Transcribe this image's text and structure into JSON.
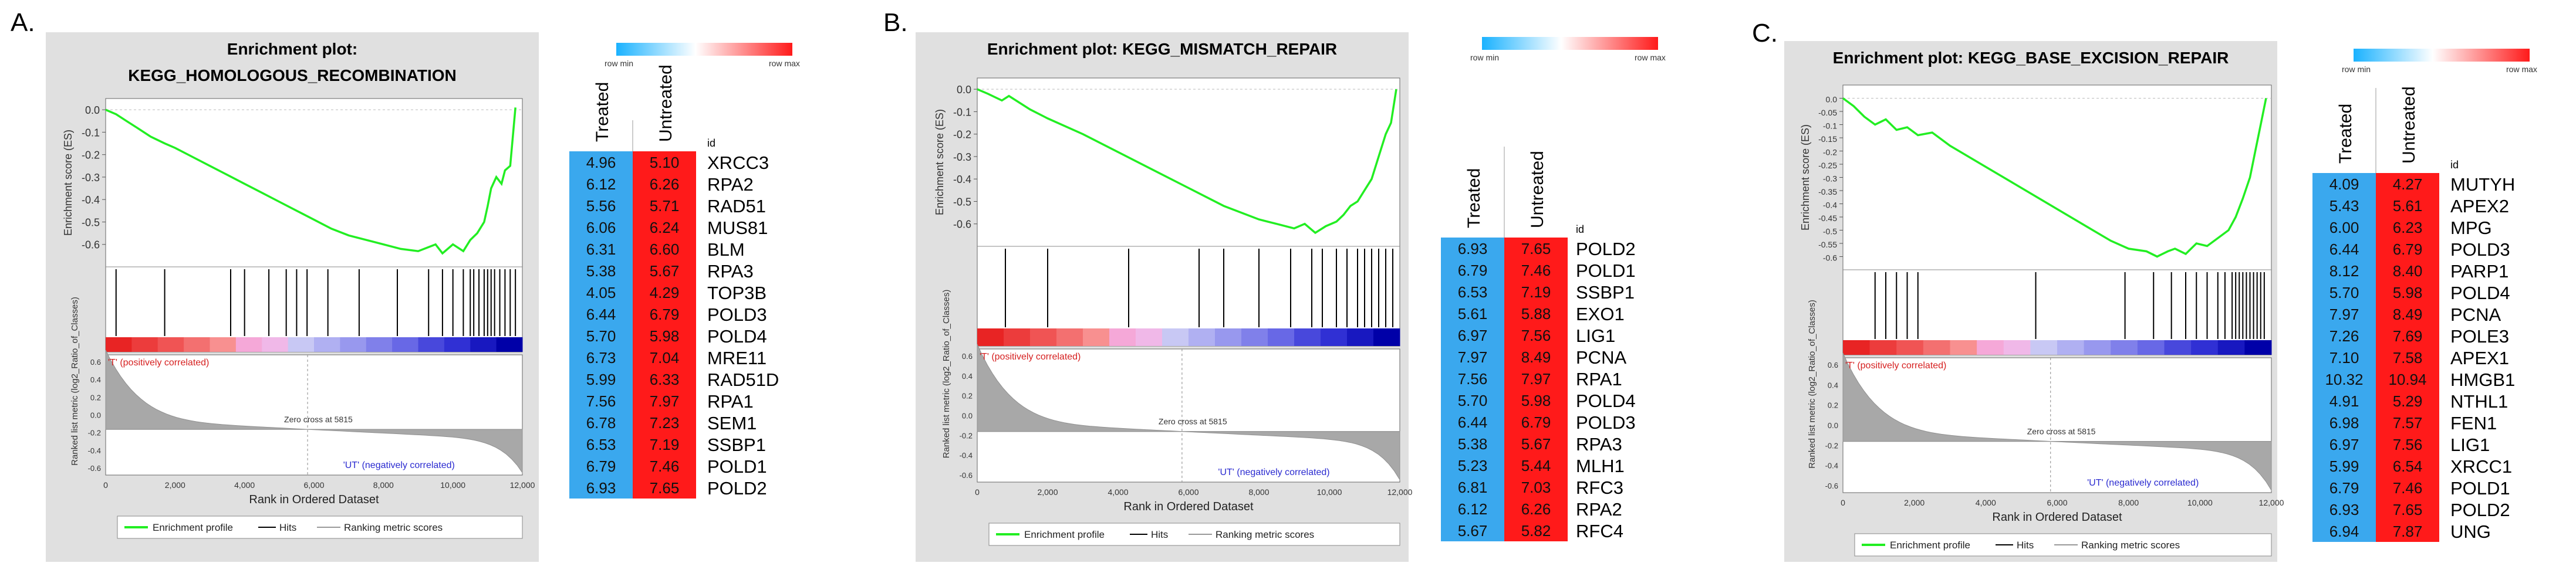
{
  "panels": [
    {
      "letter": "A.",
      "plot": {
        "title_line1": "Enrichment plot:",
        "title_line2": "KEGG_HOMOLOGOUS_RECOMBINATION",
        "es_ylabel": "Enrichment score (ES)",
        "metric_ylabel": "Ranked list metric (log2_Ratio_of_Classes)",
        "xlabel": "Rank in Ordered Dataset",
        "pos_label": "'T' (positively correlated)",
        "neg_label": "'UT' (negatively correlated)",
        "zero_cross_label": "Zero cross at 5815",
        "legend": [
          "Enrichment profile",
          "Hits",
          "Ranking metric scores"
        ]
      },
      "heatmap": {
        "scale_min_label": "row min",
        "scale_max_label": "row max",
        "col_headers": [
          "Treated",
          "Untreated"
        ],
        "id_header": "id",
        "rows": [
          {
            "t": "4.96",
            "u": "5.10",
            "id": "XRCC3"
          },
          {
            "t": "6.12",
            "u": "6.26",
            "id": "RPA2"
          },
          {
            "t": "5.56",
            "u": "5.71",
            "id": "RAD51"
          },
          {
            "t": "6.06",
            "u": "6.24",
            "id": "MUS81"
          },
          {
            "t": "6.31",
            "u": "6.60",
            "id": "BLM"
          },
          {
            "t": "5.38",
            "u": "5.67",
            "id": "RPA3"
          },
          {
            "t": "4.05",
            "u": "4.29",
            "id": "TOP3B"
          },
          {
            "t": "6.44",
            "u": "6.79",
            "id": "POLD3"
          },
          {
            "t": "5.70",
            "u": "5.98",
            "id": "POLD4"
          },
          {
            "t": "6.73",
            "u": "7.04",
            "id": "MRE11"
          },
          {
            "t": "5.99",
            "u": "6.33",
            "id": "RAD51D"
          },
          {
            "t": "7.56",
            "u": "7.97",
            "id": "RPA1"
          },
          {
            "t": "6.78",
            "u": "7.23",
            "id": "SEM1"
          },
          {
            "t": "6.53",
            "u": "7.19",
            "id": "SSBP1"
          },
          {
            "t": "6.79",
            "u": "7.46",
            "id": "POLD1"
          },
          {
            "t": "6.93",
            "u": "7.65",
            "id": "POLD2"
          }
        ]
      }
    },
    {
      "letter": "B.",
      "plot": {
        "title_line1": "Enrichment plot: KEGG_MISMATCH_REPAIR",
        "title_line2": "",
        "es_ylabel": "Enrichment score (ES)",
        "metric_ylabel": "Ranked list metric (log2_Ratio_of_Classes)",
        "xlabel": "Rank in Ordered Dataset",
        "pos_label": "'T' (positively correlated)",
        "neg_label": "'UT' (negatively correlated)",
        "zero_cross_label": "Zero cross at 5815",
        "legend": [
          "Enrichment profile",
          "Hits",
          "Ranking metric scores"
        ]
      },
      "heatmap": {
        "scale_min_label": "row min",
        "scale_max_label": "row max",
        "col_headers": [
          "Treated",
          "Untreated"
        ],
        "id_header": "id",
        "rows": [
          {
            "t": "6.93",
            "u": "7.65",
            "id": "POLD2"
          },
          {
            "t": "6.79",
            "u": "7.46",
            "id": "POLD1"
          },
          {
            "t": "6.53",
            "u": "7.19",
            "id": "SSBP1"
          },
          {
            "t": "5.61",
            "u": "5.88",
            "id": "EXO1"
          },
          {
            "t": "6.97",
            "u": "7.56",
            "id": "LIG1"
          },
          {
            "t": "7.97",
            "u": "8.49",
            "id": "PCNA"
          },
          {
            "t": "7.56",
            "u": "7.97",
            "id": "RPA1"
          },
          {
            "t": "5.70",
            "u": "5.98",
            "id": "POLD4"
          },
          {
            "t": "6.44",
            "u": "6.79",
            "id": "POLD3"
          },
          {
            "t": "5.38",
            "u": "5.67",
            "id": "RPA3"
          },
          {
            "t": "5.23",
            "u": "5.44",
            "id": "MLH1"
          },
          {
            "t": "6.81",
            "u": "7.03",
            "id": "RFC3"
          },
          {
            "t": "6.12",
            "u": "6.26",
            "id": "RPA2"
          },
          {
            "t": "5.67",
            "u": "5.82",
            "id": "RFC4"
          }
        ]
      }
    },
    {
      "letter": "C.",
      "plot": {
        "title_line1": "Enrichment plot: KEGG_BASE_EXCISION_REPAIR",
        "title_line2": "",
        "es_ylabel": "Enrichment score (ES)",
        "metric_ylabel": "Ranked list metric (log2_Ratio_of_Classes)",
        "xlabel": "Rank in Ordered Dataset",
        "pos_label": "'T' (positively correlated)",
        "neg_label": "'UT' (negatively correlated)",
        "zero_cross_label": "Zero cross at 5815",
        "legend": [
          "Enrichment profile",
          "Hits",
          "Ranking metric scores"
        ]
      },
      "heatmap": {
        "scale_min_label": "row min",
        "scale_max_label": "row max",
        "col_headers": [
          "Treated",
          "Untreated"
        ],
        "id_header": "id",
        "rows": [
          {
            "t": "4.09",
            "u": "4.27",
            "id": "MUTYH"
          },
          {
            "t": "5.43",
            "u": "5.61",
            "id": "APEX2"
          },
          {
            "t": "6.00",
            "u": "6.23",
            "id": "MPG"
          },
          {
            "t": "6.44",
            "u": "6.79",
            "id": "POLD3"
          },
          {
            "t": "8.12",
            "u": "8.40",
            "id": "PARP1"
          },
          {
            "t": "5.70",
            "u": "5.98",
            "id": "POLD4"
          },
          {
            "t": "7.97",
            "u": "8.49",
            "id": "PCNA"
          },
          {
            "t": "7.26",
            "u": "7.69",
            "id": "POLE3"
          },
          {
            "t": "7.10",
            "u": "7.58",
            "id": "APEX1"
          },
          {
            "t": "10.32",
            "u": "10.94",
            "id": "HMGB1"
          },
          {
            "t": "4.91",
            "u": "5.29",
            "id": "NTHL1"
          },
          {
            "t": "6.98",
            "u": "7.57",
            "id": "FEN1"
          },
          {
            "t": "6.97",
            "u": "7.56",
            "id": "LIG1"
          },
          {
            "t": "5.99",
            "u": "6.54",
            "id": "XRCC1"
          },
          {
            "t": "6.79",
            "u": "7.46",
            "id": "POLD1"
          },
          {
            "t": "6.93",
            "u": "7.65",
            "id": "POLD2"
          },
          {
            "t": "6.94",
            "u": "7.87",
            "id": "UNG"
          }
        ]
      }
    }
  ],
  "colors": {
    "es_line": "#22ee22",
    "treated_cell": "#3aa8ee",
    "untreated_cell": "#ff1a1a",
    "scale_min": "#1ab2ff",
    "scale_max": "#ff1a1a",
    "plot_bg": "#e0e0e0",
    "pos_text": "#d62020",
    "neg_text": "#2a2ad0"
  },
  "chart_data": [
    {
      "type": "line",
      "panel": "A.",
      "title": "Enrichment plot: KEGG_HOMOLOGOUS_RECOMBINATION",
      "xlabel": "Rank in Ordered Dataset",
      "ylabel": "Enrichment score (ES)",
      "xlim": [
        0,
        12000
      ],
      "ylim": [
        -0.7,
        0.05
      ],
      "x_ticks": [
        "0",
        "2,000",
        "4,000",
        "6,000",
        "8,000",
        "10,000",
        "12,000"
      ],
      "y_ticks": [
        "0.0",
        "-0.1",
        "-0.2",
        "-0.3",
        "-0.4",
        "-0.5",
        "-0.6"
      ],
      "x": [
        0,
        300,
        600,
        900,
        1300,
        1700,
        2000,
        2500,
        3000,
        3500,
        4000,
        4500,
        5000,
        5500,
        6000,
        6500,
        7000,
        7500,
        8000,
        8500,
        9000,
        9500,
        9700,
        10000,
        10300,
        10500,
        10700,
        10900,
        11000,
        11100,
        11250,
        11400,
        11500,
        11650,
        11800
      ],
      "es": [
        0,
        -0.02,
        -0.05,
        -0.08,
        -0.12,
        -0.15,
        -0.17,
        -0.21,
        -0.25,
        -0.29,
        -0.33,
        -0.37,
        -0.41,
        -0.45,
        -0.49,
        -0.53,
        -0.56,
        -0.58,
        -0.6,
        -0.62,
        -0.63,
        -0.6,
        -0.64,
        -0.6,
        -0.63,
        -0.58,
        -0.55,
        -0.5,
        -0.43,
        -0.35,
        -0.3,
        -0.33,
        -0.27,
        -0.25,
        0.01
      ],
      "hits": [
        300,
        1700,
        3600,
        4000,
        4700,
        5200,
        5500,
        5800,
        6400,
        7300,
        8400,
        9300,
        9700,
        10000,
        10300,
        10500,
        10600,
        10750,
        10900,
        11000,
        11100,
        11200,
        11350,
        11500,
        11650,
        11800
      ]
    },
    {
      "type": "line",
      "panel": "B.",
      "title": "Enrichment plot: KEGG_MISMATCH_REPAIR",
      "xlabel": "Rank in Ordered Dataset",
      "ylabel": "Enrichment score (ES)",
      "xlim": [
        0,
        12000
      ],
      "ylim": [
        -0.7,
        0.05
      ],
      "x_ticks": [
        "0",
        "2,000",
        "4,000",
        "6,000",
        "8,000",
        "10,000",
        "12,000"
      ],
      "y_ticks": [
        "0.0",
        "-0.1",
        "-0.2",
        "-0.3",
        "-0.4",
        "-0.5",
        "-0.6"
      ],
      "x": [
        0,
        300,
        700,
        900,
        1500,
        2000,
        3000,
        4000,
        5000,
        6000,
        7000,
        7500,
        8000,
        8500,
        9000,
        9300,
        9600,
        9900,
        10200,
        10400,
        10600,
        10800,
        11000,
        11200,
        11400,
        11600,
        11750,
        11900
      ],
      "es": [
        0,
        -0.02,
        -0.05,
        -0.03,
        -0.09,
        -0.13,
        -0.2,
        -0.28,
        -0.36,
        -0.44,
        -0.52,
        -0.55,
        -0.58,
        -0.6,
        -0.62,
        -0.6,
        -0.64,
        -0.61,
        -0.59,
        -0.56,
        -0.52,
        -0.5,
        -0.45,
        -0.4,
        -0.3,
        -0.2,
        -0.15,
        0.0
      ],
      "hits": [
        800,
        2000,
        4300,
        6300,
        7000,
        8000,
        8900,
        9500,
        9800,
        10200,
        10500,
        10800,
        11000,
        11200,
        11400,
        11600,
        11800
      ]
    },
    {
      "type": "line",
      "panel": "C.",
      "title": "Enrichment plot: KEGG_BASE_EXCISION_REPAIR",
      "xlabel": "Rank in Ordered Dataset",
      "ylabel": "Enrichment score (ES)",
      "xlim": [
        0,
        12000
      ],
      "ylim": [
        -0.65,
        0.05
      ],
      "x_ticks": [
        "0",
        "2,000",
        "4,000",
        "6,000",
        "8,000",
        "10,000",
        "12,000"
      ],
      "y_ticks": [
        "0.0",
        "-0.05",
        "-0.1",
        "-0.15",
        "-0.2",
        "-0.25",
        "-0.3",
        "-0.35",
        "-0.4",
        "-0.45",
        "-0.5",
        "-0.55",
        "-0.6"
      ],
      "x": [
        0,
        300,
        600,
        900,
        1200,
        1500,
        1800,
        2100,
        2500,
        3000,
        3500,
        4000,
        4500,
        5000,
        5500,
        6000,
        6500,
        7000,
        7500,
        8000,
        8500,
        8800,
        9100,
        9300,
        9600,
        9900,
        10200,
        10500,
        10800,
        11000,
        11200,
        11400,
        11550,
        11700,
        11850
      ],
      "es": [
        0,
        -0.03,
        -0.07,
        -0.1,
        -0.08,
        -0.12,
        -0.11,
        -0.14,
        -0.13,
        -0.18,
        -0.22,
        -0.26,
        -0.3,
        -0.34,
        -0.38,
        -0.42,
        -0.46,
        -0.5,
        -0.54,
        -0.57,
        -0.58,
        -0.6,
        -0.58,
        -0.57,
        -0.59,
        -0.55,
        -0.56,
        -0.53,
        -0.5,
        -0.45,
        -0.38,
        -0.3,
        -0.2,
        -0.1,
        0.0
      ],
      "hits": [
        900,
        1200,
        1500,
        1800,
        2100,
        5400,
        7900,
        8700,
        9200,
        9600,
        9900,
        10200,
        10500,
        10700,
        10900,
        11000,
        11100,
        11200,
        11300,
        11400,
        11500,
        11600,
        11700,
        11800
      ]
    }
  ]
}
